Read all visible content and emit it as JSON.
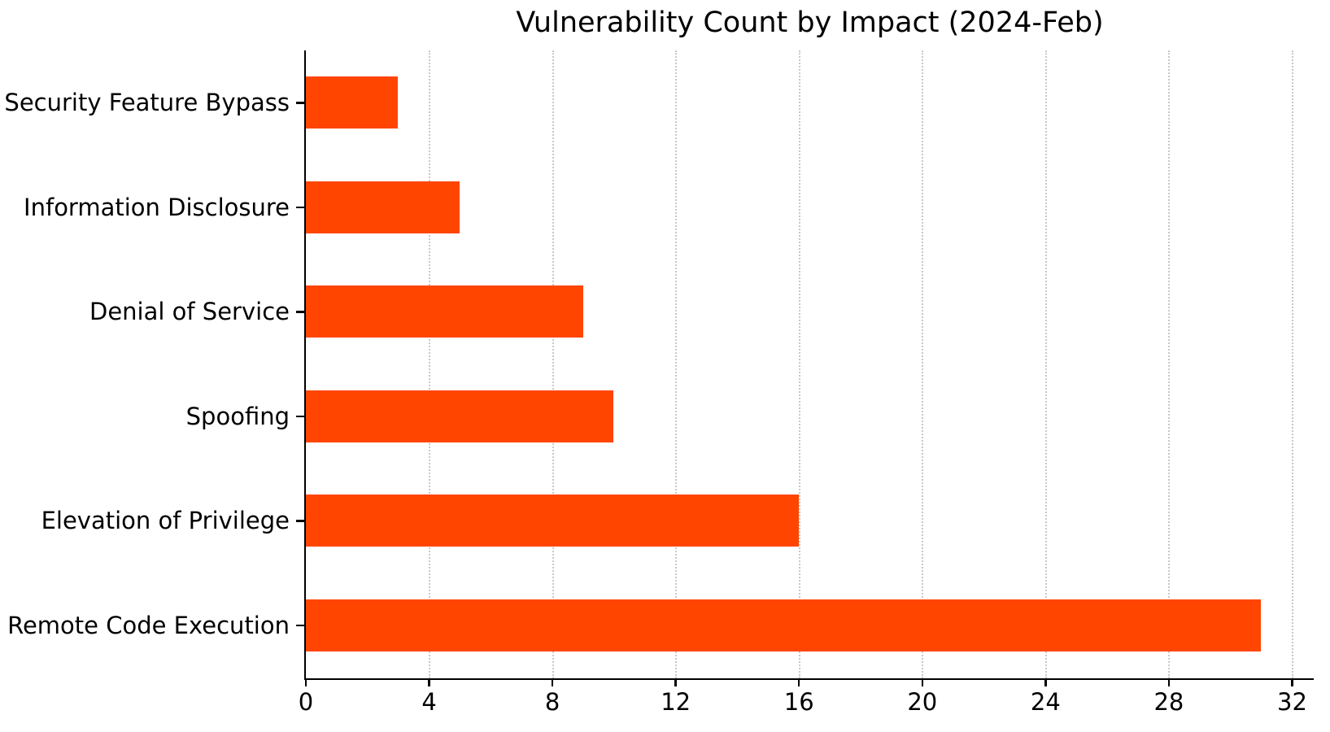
{
  "chart_data": {
    "type": "bar",
    "orientation": "horizontal",
    "title": "Vulnerability Count by Impact (2024-Feb)",
    "categories": [
      "Security Feature Bypass",
      "Information Disclosure",
      "Denial of Service",
      "Spoofing",
      "Elevation of Privilege",
      "Remote Code Execution"
    ],
    "values": [
      3,
      5,
      9,
      10,
      16,
      31
    ],
    "x_ticks": [
      0,
      4,
      8,
      12,
      16,
      20,
      24,
      28,
      32
    ],
    "xlim": [
      0,
      32.7
    ],
    "xlabel": "",
    "ylabel": "",
    "grid": "vertical-dotted",
    "legend": null,
    "colors": {
      "bar": "#FF4500",
      "grid": "#c8c8c8",
      "axis": "#000000",
      "text": "#000000",
      "background": "#ffffff"
    }
  }
}
